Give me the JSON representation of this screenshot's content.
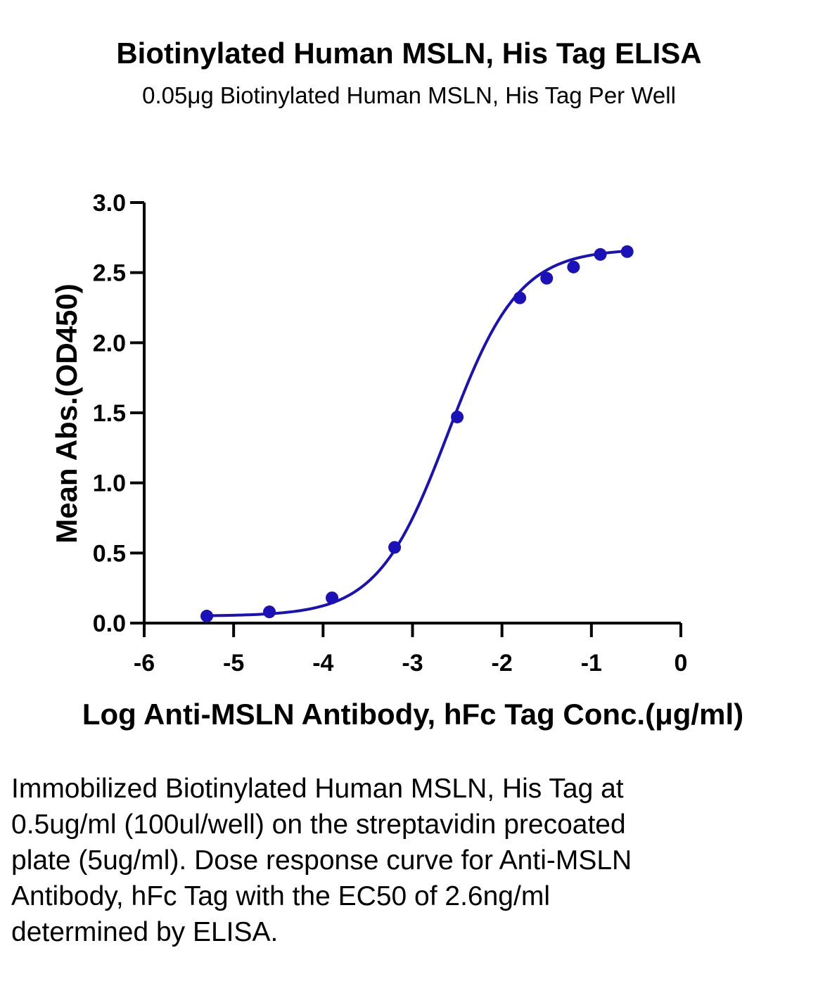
{
  "chart_data": {
    "type": "scatter",
    "title": "Biotinylated Human MSLN, His Tag ELISA",
    "subtitle": "0.05μg Biotinylated Human MSLN, His Tag Per Well",
    "xlabel": "Log Anti-MSLN Antibody, hFc Tag Conc.(μg/ml)",
    "ylabel": "Mean Abs.(OD450)",
    "xlim": [
      -6,
      0
    ],
    "ylim": [
      0,
      3.0
    ],
    "x_ticks": [
      "-6",
      "-5",
      "-4",
      "-3",
      "-2",
      "-1",
      "0"
    ],
    "y_ticks": [
      "0.0",
      "0.5",
      "1.0",
      "1.5",
      "2.0",
      "2.5",
      "3.0"
    ],
    "grid": false,
    "color": "#1a12b8",
    "points": {
      "x": [
        -5.3,
        -4.6,
        -3.9,
        -3.2,
        -2.5,
        -1.8,
        -1.5,
        -1.2,
        -0.9,
        -0.6
      ],
      "y": [
        0.05,
        0.08,
        0.18,
        0.54,
        1.47,
        2.32,
        2.46,
        2.54,
        2.63,
        2.65
      ]
    },
    "fit_curve": {
      "model": "4PL",
      "bottom": 0.05,
      "top": 2.67,
      "logEC50": -2.6,
      "hill": 1.1
    }
  },
  "caption": "Immobilized Biotinylated Human MSLN, His Tag at 0.5ug/ml (100ul/well) on the streptavidin precoated plate (5ug/ml). Dose response curve for Anti-MSLN Antibody, hFc Tag with the EC50 of 2.6ng/ml determined by ELISA."
}
